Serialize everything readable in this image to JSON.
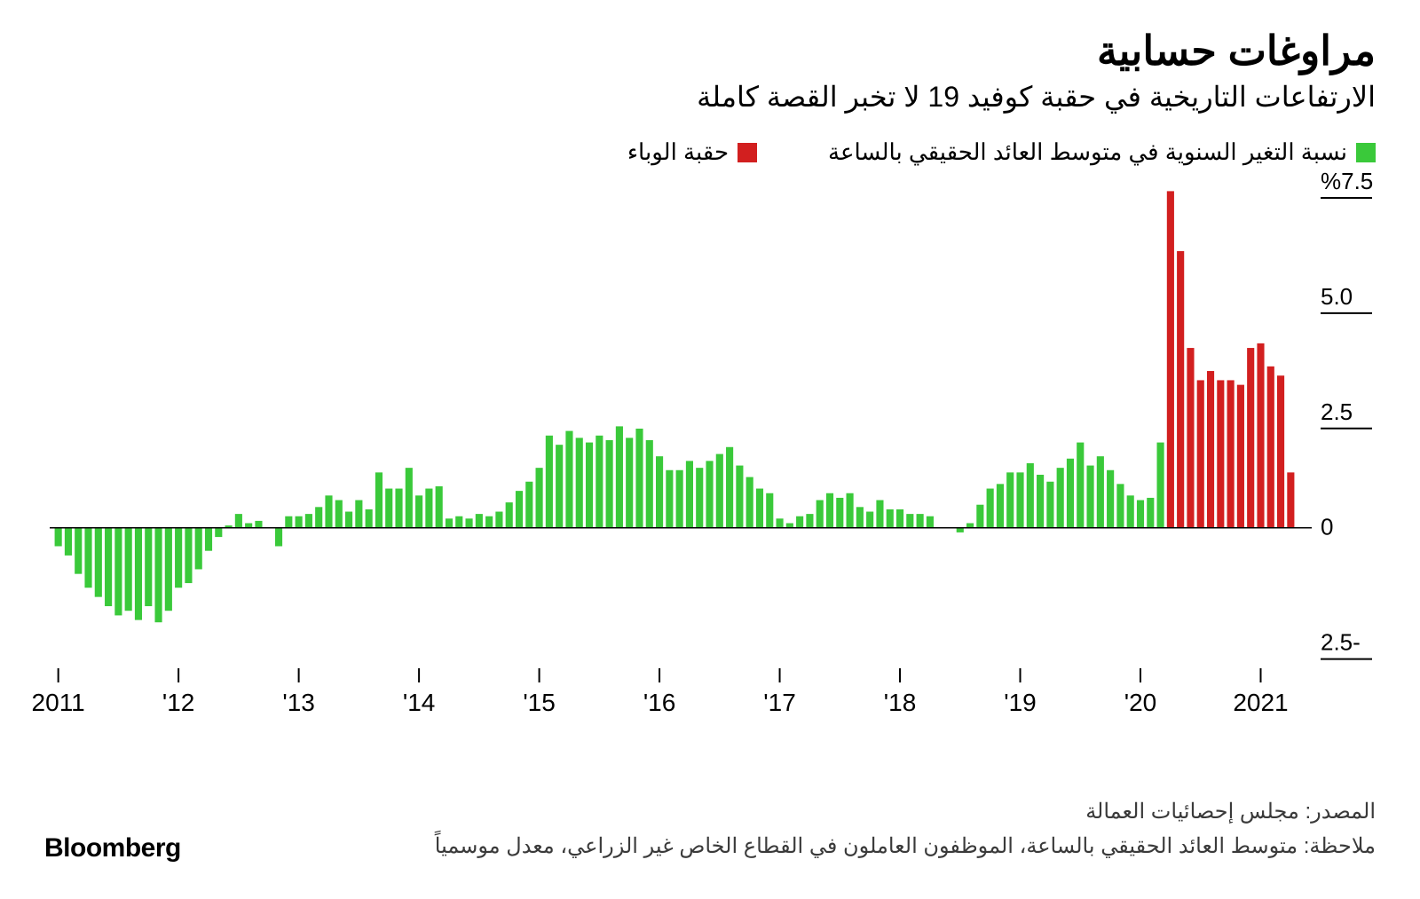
{
  "title": "مراوغات حسابية",
  "subtitle": "الارتفاعات التاريخية في حقبة كوفيد 19 لا تخبر القصة كاملة",
  "legend": {
    "series1": {
      "label": "نسبة التغير السنوية في متوسط العائد الحقيقي بالساعة",
      "color": "#3ac93a"
    },
    "series2": {
      "label": "حقبة الوباء",
      "color": "#d21f1f"
    }
  },
  "chart": {
    "type": "bar",
    "background_color": "#ffffff",
    "axis_color": "#000000",
    "tick_mark_color": "#000000",
    "ylabel_suffix_first": "%",
    "ylim": [
      -2.7,
      7.5
    ],
    "yticks": [
      7.5,
      5.0,
      2.5,
      0,
      -2.5
    ],
    "ytick_labels": [
      "%7.5",
      "5.0",
      "2.5",
      "0",
      "2.5-"
    ],
    "xticks": [
      "2011",
      "'12",
      "'13",
      "'14",
      "'15",
      "'16",
      "'17",
      "'18",
      "'19",
      "'20",
      "2021"
    ],
    "xtick_positions_months": [
      0,
      12,
      24,
      36,
      48,
      60,
      72,
      84,
      96,
      108,
      120
    ],
    "bar_gap_ratio": 0.28,
    "series": [
      {
        "m": 0,
        "v": -0.4,
        "c": "g"
      },
      {
        "m": 1,
        "v": -0.6,
        "c": "g"
      },
      {
        "m": 2,
        "v": -1.0,
        "c": "g"
      },
      {
        "m": 3,
        "v": -1.3,
        "c": "g"
      },
      {
        "m": 4,
        "v": -1.5,
        "c": "g"
      },
      {
        "m": 5,
        "v": -1.7,
        "c": "g"
      },
      {
        "m": 6,
        "v": -1.9,
        "c": "g"
      },
      {
        "m": 7,
        "v": -1.8,
        "c": "g"
      },
      {
        "m": 8,
        "v": -2.0,
        "c": "g"
      },
      {
        "m": 9,
        "v": -1.7,
        "c": "g"
      },
      {
        "m": 10,
        "v": -2.05,
        "c": "g"
      },
      {
        "m": 11,
        "v": -1.8,
        "c": "g"
      },
      {
        "m": 12,
        "v": -1.3,
        "c": "g"
      },
      {
        "m": 13,
        "v": -1.2,
        "c": "g"
      },
      {
        "m": 14,
        "v": -0.9,
        "c": "g"
      },
      {
        "m": 15,
        "v": -0.5,
        "c": "g"
      },
      {
        "m": 16,
        "v": -0.2,
        "c": "g"
      },
      {
        "m": 17,
        "v": 0.05,
        "c": "g"
      },
      {
        "m": 18,
        "v": 0.3,
        "c": "g"
      },
      {
        "m": 19,
        "v": 0.1,
        "c": "g"
      },
      {
        "m": 20,
        "v": 0.15,
        "c": "g"
      },
      {
        "m": 21,
        "v": 0.0,
        "c": "g"
      },
      {
        "m": 22,
        "v": -0.4,
        "c": "g"
      },
      {
        "m": 23,
        "v": 0.25,
        "c": "g"
      },
      {
        "m": 24,
        "v": 0.25,
        "c": "g"
      },
      {
        "m": 25,
        "v": 0.3,
        "c": "g"
      },
      {
        "m": 26,
        "v": 0.45,
        "c": "g"
      },
      {
        "m": 27,
        "v": 0.7,
        "c": "g"
      },
      {
        "m": 28,
        "v": 0.6,
        "c": "g"
      },
      {
        "m": 29,
        "v": 0.35,
        "c": "g"
      },
      {
        "m": 30,
        "v": 0.6,
        "c": "g"
      },
      {
        "m": 31,
        "v": 0.4,
        "c": "g"
      },
      {
        "m": 32,
        "v": 1.2,
        "c": "g"
      },
      {
        "m": 33,
        "v": 0.85,
        "c": "g"
      },
      {
        "m": 34,
        "v": 0.85,
        "c": "g"
      },
      {
        "m": 35,
        "v": 1.3,
        "c": "g"
      },
      {
        "m": 36,
        "v": 0.7,
        "c": "g"
      },
      {
        "m": 37,
        "v": 0.85,
        "c": "g"
      },
      {
        "m": 38,
        "v": 0.9,
        "c": "g"
      },
      {
        "m": 39,
        "v": 0.2,
        "c": "g"
      },
      {
        "m": 40,
        "v": 0.25,
        "c": "g"
      },
      {
        "m": 41,
        "v": 0.2,
        "c": "g"
      },
      {
        "m": 42,
        "v": 0.3,
        "c": "g"
      },
      {
        "m": 43,
        "v": 0.25,
        "c": "g"
      },
      {
        "m": 44,
        "v": 0.35,
        "c": "g"
      },
      {
        "m": 45,
        "v": 0.55,
        "c": "g"
      },
      {
        "m": 46,
        "v": 0.8,
        "c": "g"
      },
      {
        "m": 47,
        "v": 1.0,
        "c": "g"
      },
      {
        "m": 48,
        "v": 1.3,
        "c": "g"
      },
      {
        "m": 49,
        "v": 2.0,
        "c": "g"
      },
      {
        "m": 50,
        "v": 1.8,
        "c": "g"
      },
      {
        "m": 51,
        "v": 2.1,
        "c": "g"
      },
      {
        "m": 52,
        "v": 1.95,
        "c": "g"
      },
      {
        "m": 53,
        "v": 1.85,
        "c": "g"
      },
      {
        "m": 54,
        "v": 2.0,
        "c": "g"
      },
      {
        "m": 55,
        "v": 1.9,
        "c": "g"
      },
      {
        "m": 56,
        "v": 2.2,
        "c": "g"
      },
      {
        "m": 57,
        "v": 1.95,
        "c": "g"
      },
      {
        "m": 58,
        "v": 2.15,
        "c": "g"
      },
      {
        "m": 59,
        "v": 1.9,
        "c": "g"
      },
      {
        "m": 60,
        "v": 1.55,
        "c": "g"
      },
      {
        "m": 61,
        "v": 1.25,
        "c": "g"
      },
      {
        "m": 62,
        "v": 1.25,
        "c": "g"
      },
      {
        "m": 63,
        "v": 1.45,
        "c": "g"
      },
      {
        "m": 64,
        "v": 1.3,
        "c": "g"
      },
      {
        "m": 65,
        "v": 1.45,
        "c": "g"
      },
      {
        "m": 66,
        "v": 1.6,
        "c": "g"
      },
      {
        "m": 67,
        "v": 1.75,
        "c": "g"
      },
      {
        "m": 68,
        "v": 1.35,
        "c": "g"
      },
      {
        "m": 69,
        "v": 1.1,
        "c": "g"
      },
      {
        "m": 70,
        "v": 0.85,
        "c": "g"
      },
      {
        "m": 71,
        "v": 0.75,
        "c": "g"
      },
      {
        "m": 72,
        "v": 0.2,
        "c": "g"
      },
      {
        "m": 73,
        "v": 0.1,
        "c": "g"
      },
      {
        "m": 74,
        "v": 0.25,
        "c": "g"
      },
      {
        "m": 75,
        "v": 0.3,
        "c": "g"
      },
      {
        "m": 76,
        "v": 0.6,
        "c": "g"
      },
      {
        "m": 77,
        "v": 0.75,
        "c": "g"
      },
      {
        "m": 78,
        "v": 0.65,
        "c": "g"
      },
      {
        "m": 79,
        "v": 0.75,
        "c": "g"
      },
      {
        "m": 80,
        "v": 0.45,
        "c": "g"
      },
      {
        "m": 81,
        "v": 0.35,
        "c": "g"
      },
      {
        "m": 82,
        "v": 0.6,
        "c": "g"
      },
      {
        "m": 83,
        "v": 0.4,
        "c": "g"
      },
      {
        "m": 84,
        "v": 0.4,
        "c": "g"
      },
      {
        "m": 85,
        "v": 0.3,
        "c": "g"
      },
      {
        "m": 86,
        "v": 0.3,
        "c": "g"
      },
      {
        "m": 87,
        "v": 0.25,
        "c": "g"
      },
      {
        "m": 88,
        "v": 0.0,
        "c": "g"
      },
      {
        "m": 89,
        "v": 0.0,
        "c": "g"
      },
      {
        "m": 90,
        "v": -0.1,
        "c": "g"
      },
      {
        "m": 91,
        "v": 0.1,
        "c": "g"
      },
      {
        "m": 92,
        "v": 0.5,
        "c": "g"
      },
      {
        "m": 93,
        "v": 0.85,
        "c": "g"
      },
      {
        "m": 94,
        "v": 0.95,
        "c": "g"
      },
      {
        "m": 95,
        "v": 1.2,
        "c": "g"
      },
      {
        "m": 96,
        "v": 1.2,
        "c": "g"
      },
      {
        "m": 97,
        "v": 1.4,
        "c": "g"
      },
      {
        "m": 98,
        "v": 1.15,
        "c": "g"
      },
      {
        "m": 99,
        "v": 1.0,
        "c": "g"
      },
      {
        "m": 100,
        "v": 1.3,
        "c": "g"
      },
      {
        "m": 101,
        "v": 1.5,
        "c": "g"
      },
      {
        "m": 102,
        "v": 1.85,
        "c": "g"
      },
      {
        "m": 103,
        "v": 1.35,
        "c": "g"
      },
      {
        "m": 104,
        "v": 1.55,
        "c": "g"
      },
      {
        "m": 105,
        "v": 1.25,
        "c": "g"
      },
      {
        "m": 106,
        "v": 0.95,
        "c": "g"
      },
      {
        "m": 107,
        "v": 0.7,
        "c": "g"
      },
      {
        "m": 108,
        "v": 0.6,
        "c": "g"
      },
      {
        "m": 109,
        "v": 0.65,
        "c": "g"
      },
      {
        "m": 110,
        "v": 1.85,
        "c": "g"
      },
      {
        "m": 111,
        "v": 7.3,
        "c": "r"
      },
      {
        "m": 112,
        "v": 6.0,
        "c": "r"
      },
      {
        "m": 113,
        "v": 3.9,
        "c": "r"
      },
      {
        "m": 114,
        "v": 3.2,
        "c": "r"
      },
      {
        "m": 115,
        "v": 3.4,
        "c": "r"
      },
      {
        "m": 116,
        "v": 3.2,
        "c": "r"
      },
      {
        "m": 117,
        "v": 3.2,
        "c": "r"
      },
      {
        "m": 118,
        "v": 3.1,
        "c": "r"
      },
      {
        "m": 119,
        "v": 3.9,
        "c": "r"
      },
      {
        "m": 120,
        "v": 4.0,
        "c": "r"
      },
      {
        "m": 121,
        "v": 3.5,
        "c": "r"
      },
      {
        "m": 122,
        "v": 3.3,
        "c": "r"
      },
      {
        "m": 123,
        "v": 1.2,
        "c": "r"
      }
    ],
    "colors": {
      "g": "#3ac93a",
      "r": "#d21f1f"
    }
  },
  "footer": {
    "source_label": "المصدر:",
    "source_text": "مجلس إحصائيات العمالة",
    "note_label": "ملاحظة:",
    "note_text": "متوسط العائد الحقيقي بالساعة، الموظفون العاملون في القطاع الخاص غير الزراعي، معدل موسمياً",
    "brand": "Bloomberg"
  }
}
